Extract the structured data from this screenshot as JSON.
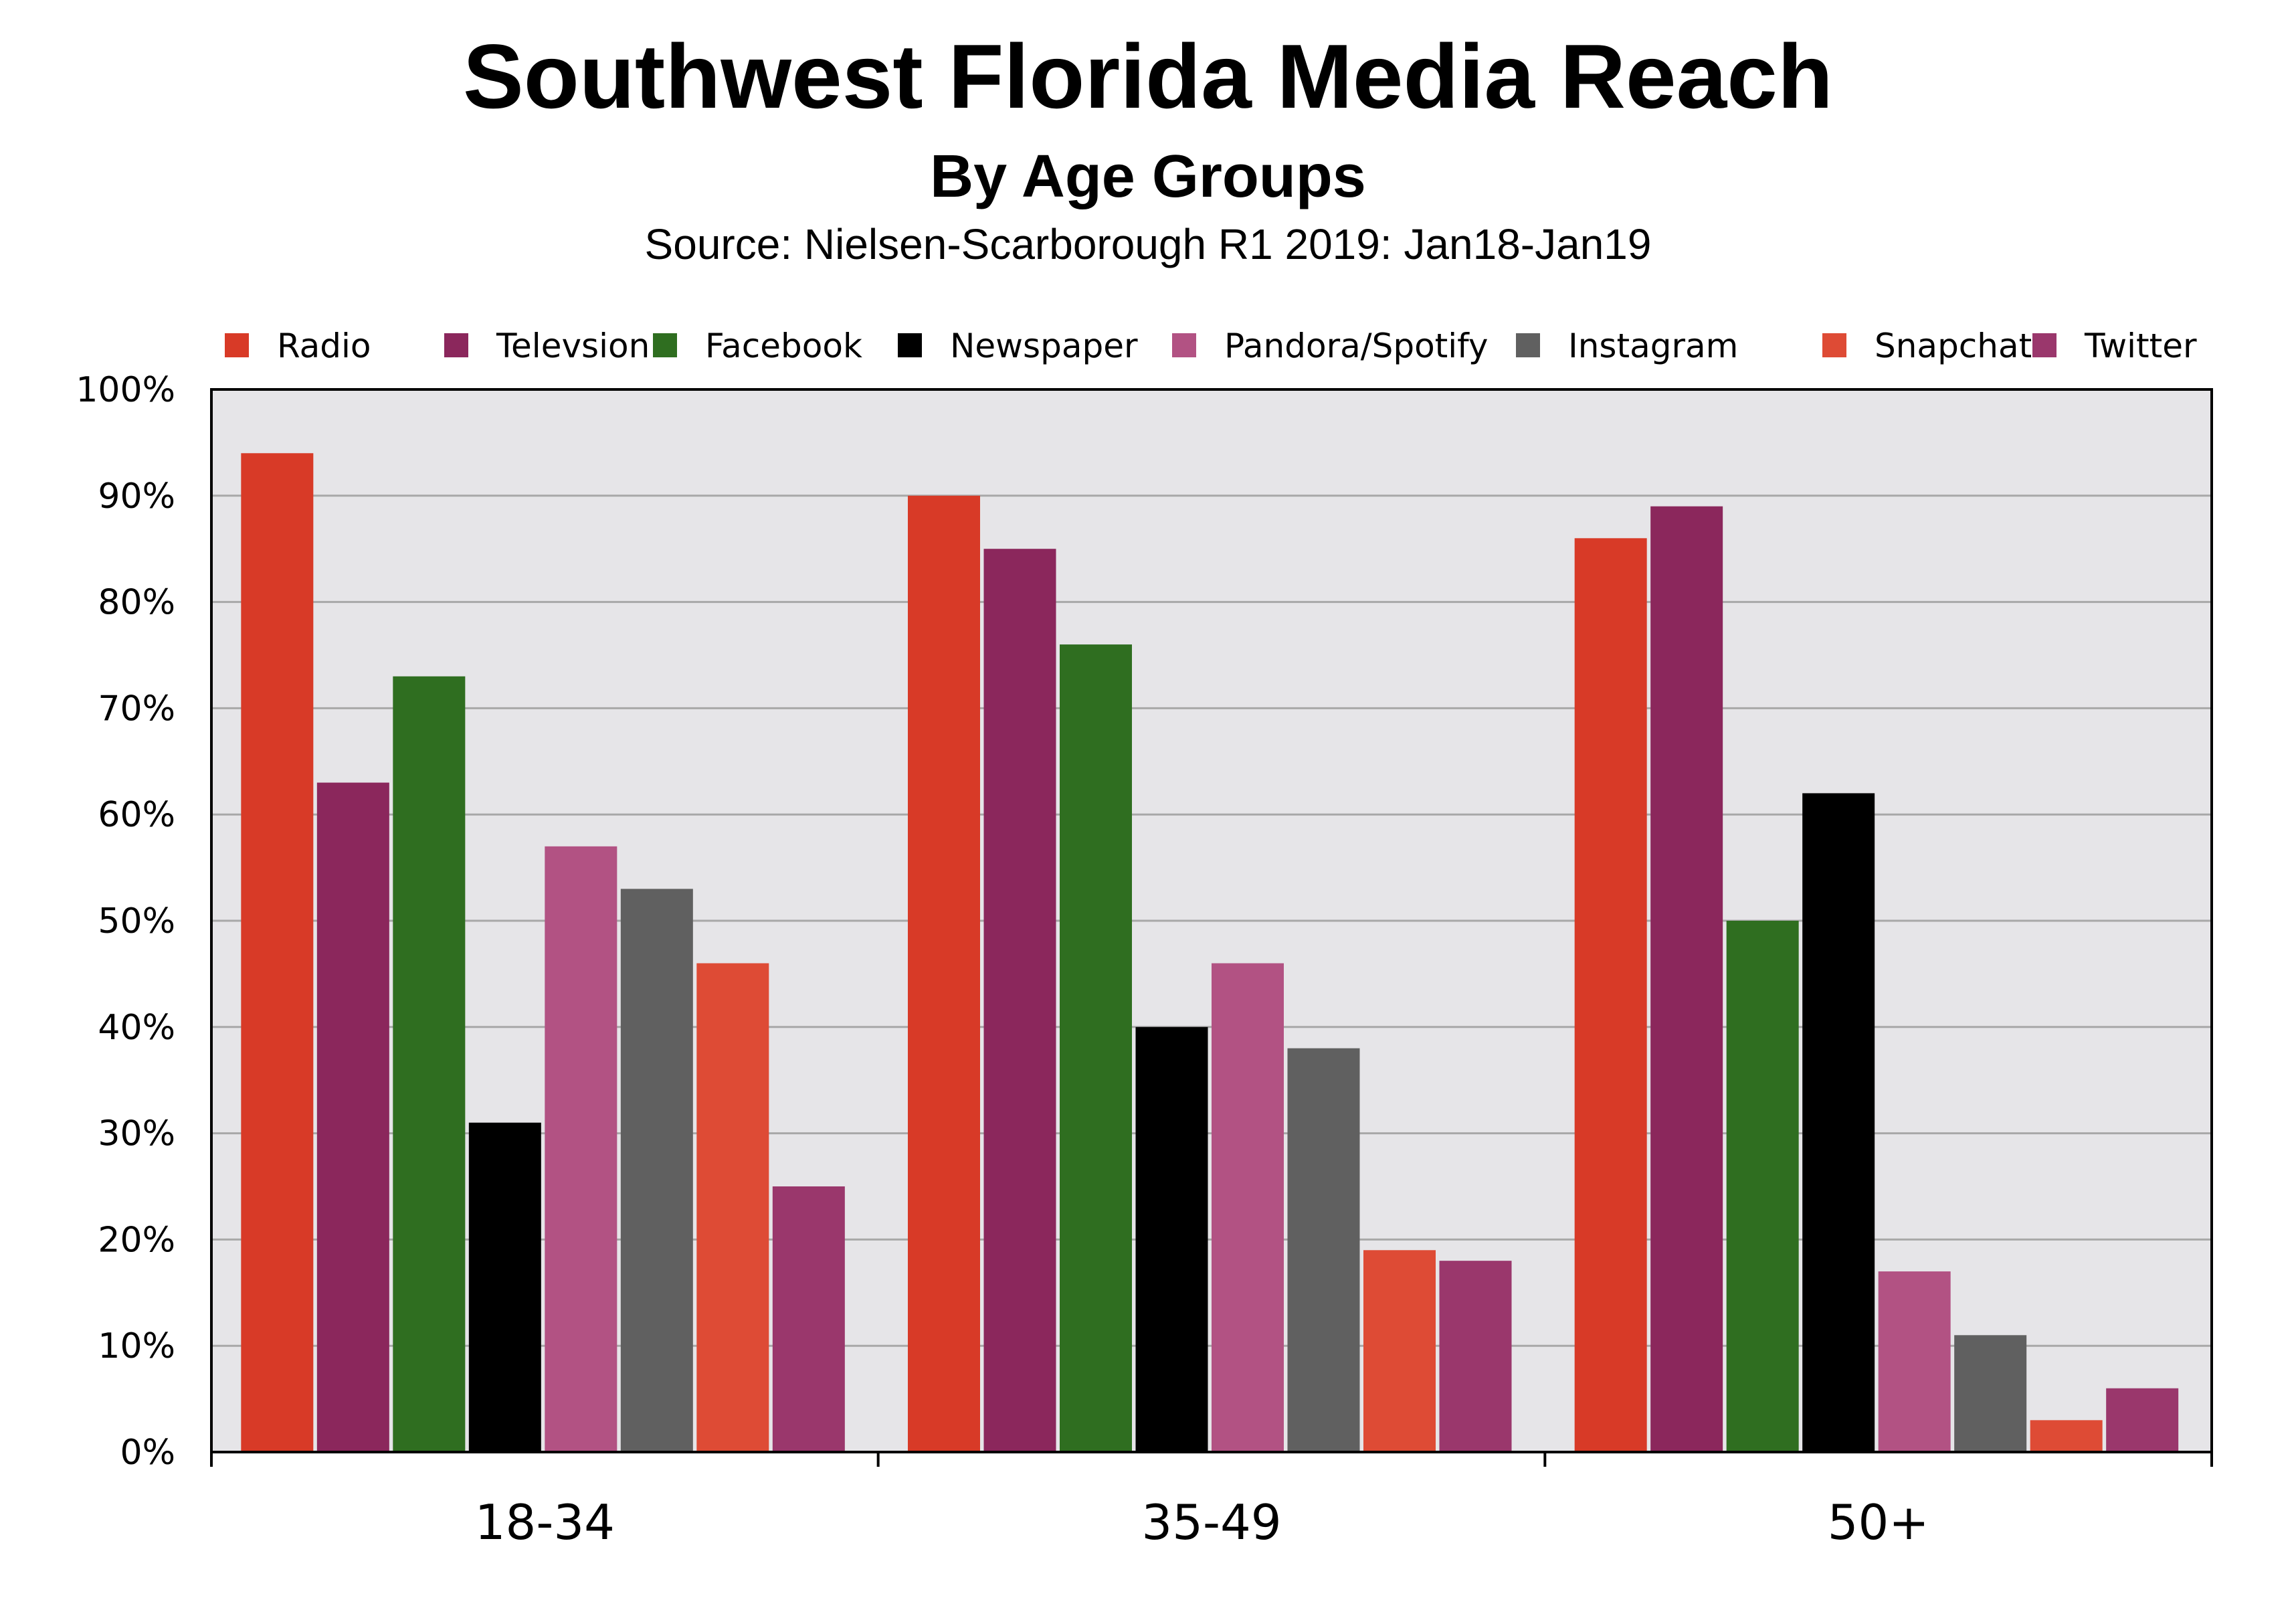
{
  "chart_data": {
    "type": "bar",
    "title": "Southwest Florida Media Reach",
    "subtitle": "By Age Groups",
    "source": "Source: Nielsen-Scarborough R1 2019: Jan18-Jan19",
    "categories": [
      "18-34",
      "35-49",
      "50+"
    ],
    "series": [
      {
        "name": "Radio",
        "color": "#d83a27",
        "values": [
          94,
          90,
          86
        ]
      },
      {
        "name": "Televsion",
        "color": "#8b275c",
        "values": [
          63,
          85,
          89
        ]
      },
      {
        "name": "Facebook",
        "color": "#2f6e20",
        "values": [
          73,
          76,
          50
        ]
      },
      {
        "name": "Newspaper",
        "color": "#000000",
        "values": [
          31,
          40,
          62
        ]
      },
      {
        "name": "Pandora/Spotify",
        "color": "#b25283",
        "values": [
          57,
          46,
          17
        ]
      },
      {
        "name": "Instagram",
        "color": "#606060",
        "values": [
          53,
          38,
          11
        ]
      },
      {
        "name": "Snapchat",
        "color": "#de4b35",
        "values": [
          46,
          19,
          3
        ]
      },
      {
        "name": "Twitter",
        "color": "#9a376c",
        "values": [
          25,
          18,
          6
        ]
      }
    ],
    "y_ticks": [
      "0%",
      "10%",
      "20%",
      "30%",
      "40%",
      "50%",
      "60%",
      "70%",
      "80%",
      "90%",
      "100%"
    ],
    "ylim": [
      0,
      100
    ],
    "grid": true,
    "legend_position": "top",
    "plot_background": "#e6e5e8"
  }
}
